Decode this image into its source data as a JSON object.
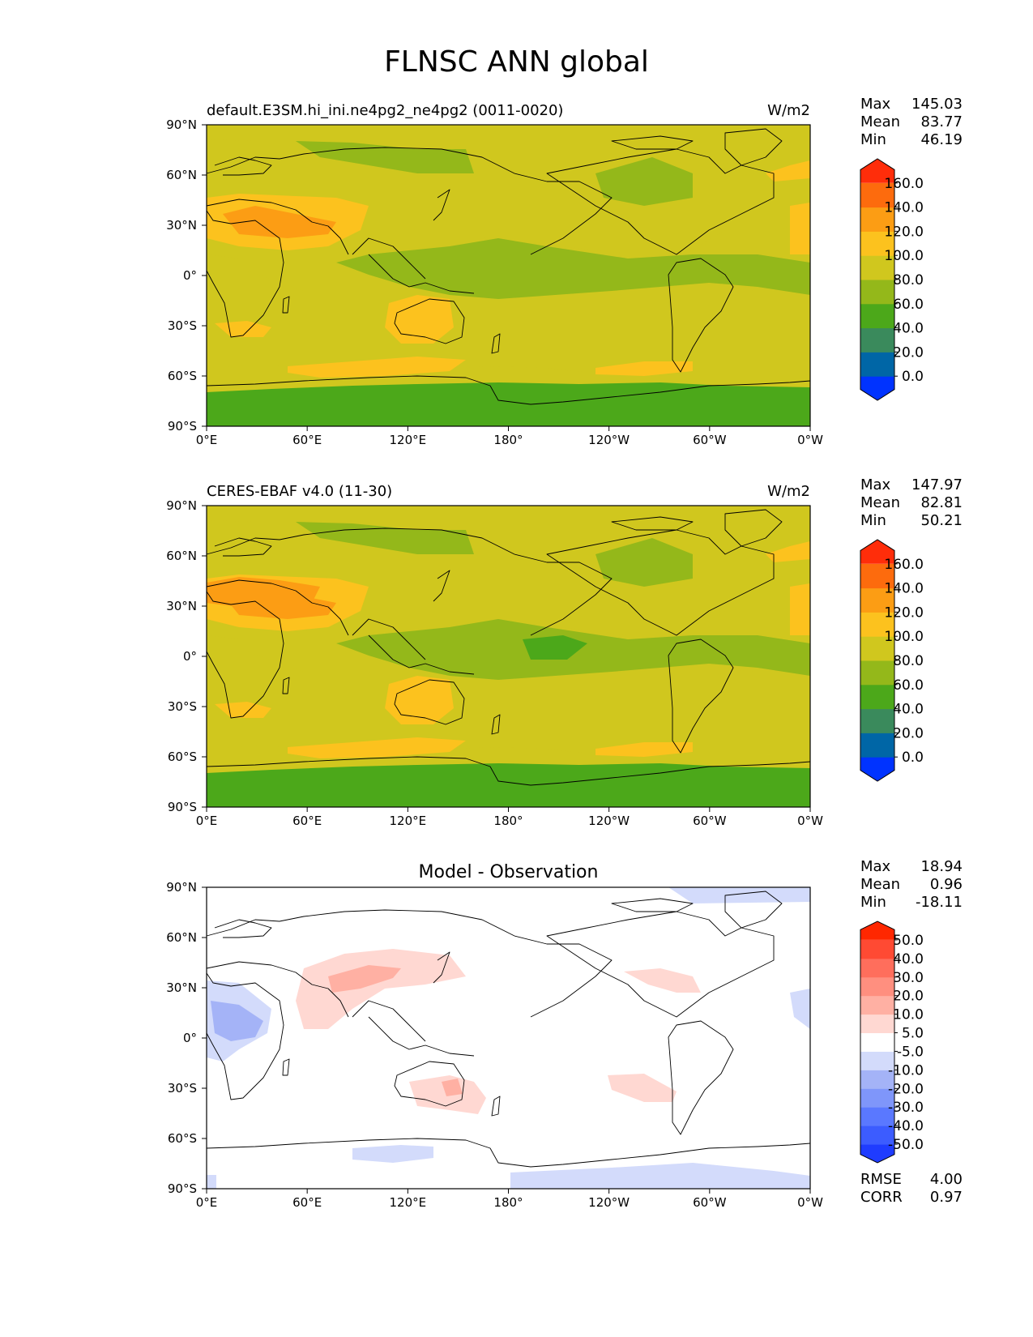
{
  "title": "FLNSC ANN global",
  "colors": {
    "main_levels": [
      "#0033ff",
      "#0066a6",
      "#3a8a5c",
      "#4ca81a",
      "#94b81a",
      "#d0c71e",
      "#fcc21e",
      "#fc9d14",
      "#fd6b0d",
      "#ff2d0a"
    ],
    "diff_levels": [
      "#1f3cff",
      "#3c5cff",
      "#5a78ff",
      "#7f96fa",
      "#a4b3f7",
      "#d3dbfb",
      "#ffffff",
      "#ffd8d2",
      "#ffb0a3",
      "#ff8f7f",
      "#ff6e5c",
      "#ff4a33",
      "#ff2700"
    ]
  },
  "x_ticks": [
    "0°E",
    "60°E",
    "120°E",
    "180°",
    "120°W",
    "60°W",
    "0°W"
  ],
  "y_ticks": [
    "90°N",
    "60°N",
    "30°N",
    "0°",
    "30°S",
    "60°S",
    "90°S"
  ],
  "panels": [
    {
      "id": "test",
      "left_title": "default.E3SM.hi_ini.ne4pg2_ne4pg2 (0011-0020)",
      "center_title": "",
      "units": "W/m2",
      "stats": [
        {
          "label": "Max",
          "value": "145.03"
        },
        {
          "label": "Mean",
          "value": "83.77"
        },
        {
          "label": "Min",
          "value": "46.19"
        }
      ],
      "colorbar_labels": [
        "160.0",
        "140.0",
        "120.0",
        "100.0",
        "80.0",
        "60.0",
        "40.0",
        "20.0",
        "0.0"
      ]
    },
    {
      "id": "reference",
      "left_title": "CERES-EBAF v4.0 (11-30)",
      "center_title": "",
      "units": "W/m2",
      "stats": [
        {
          "label": "Max",
          "value": "147.97"
        },
        {
          "label": "Mean",
          "value": "82.81"
        },
        {
          "label": "Min",
          "value": "50.21"
        }
      ],
      "colorbar_labels": [
        "160.0",
        "140.0",
        "120.0",
        "100.0",
        "80.0",
        "60.0",
        "40.0",
        "20.0",
        "0.0"
      ]
    },
    {
      "id": "diff",
      "left_title": "",
      "center_title": "Model - Observation",
      "units": "",
      "stats": [
        {
          "label": "Max",
          "value": "18.94"
        },
        {
          "label": "Mean",
          "value": "0.96"
        },
        {
          "label": "Min",
          "value": "-18.11"
        }
      ],
      "colorbar_labels": [
        "50.0",
        "40.0",
        "30.0",
        "20.0",
        "10.0",
        "5.0",
        "-5.0",
        "-10.0",
        "-20.0",
        "-30.0",
        "-40.0",
        "-50.0"
      ],
      "extra_stats": [
        {
          "label": "RMSE",
          "value": "4.00"
        },
        {
          "label": "CORR",
          "value": "0.97"
        }
      ]
    }
  ]
}
